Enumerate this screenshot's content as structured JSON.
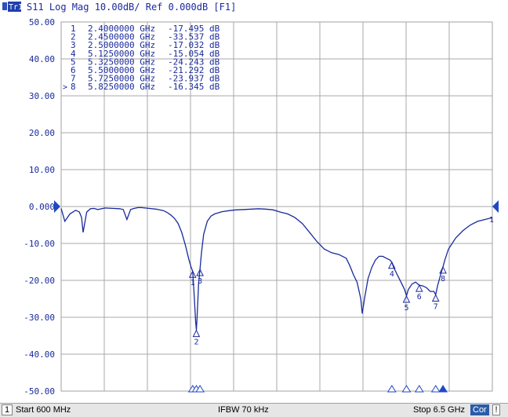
{
  "header": {
    "trace_badge": "Tr1",
    "trace_label": "S11 Log Mag 10.00dB/ Ref 0.000dB [F1]"
  },
  "status_bar": {
    "channel": "1",
    "start": "Start 600 MHz",
    "ifbw": "IFBW 70 kHz",
    "stop": "Stop 6.5 GHz",
    "cor": "Cor",
    "excl": "!"
  },
  "colors": {
    "trace": "#1a2a9c",
    "marker_text": "#1a2a9c",
    "grid": "#a8a8a8",
    "ref_marker": "#1f47c8",
    "header_bg": "#ffffff"
  },
  "markers": [
    {
      "num": "1",
      "freq": "2.4000000 GHz",
      "value": "-17.495 dB",
      "active": false
    },
    {
      "num": "2",
      "freq": "2.4500000 GHz",
      "value": "-33.537 dB",
      "active": false
    },
    {
      "num": "3",
      "freq": "2.5000000 GHz",
      "value": "-17.032 dB",
      "active": false
    },
    {
      "num": "4",
      "freq": "5.1250000 GHz",
      "value": "-15.054 dB",
      "active": false
    },
    {
      "num": "5",
      "freq": "5.3250000 GHz",
      "value": "-24.243 dB",
      "active": false
    },
    {
      "num": "6",
      "freq": "5.5000000 GHz",
      "value": "-21.292 dB",
      "active": false
    },
    {
      "num": "7",
      "freq": "5.7250000 GHz",
      "value": "-23.937 dB",
      "active": false
    },
    {
      "num": "8",
      "freq": "5.8250000 GHz",
      "value": "-16.345 dB",
      "active": true
    }
  ],
  "chart_data": {
    "type": "line",
    "xlim": [
      0.6,
      6.5
    ],
    "ylim": [
      -50,
      50
    ],
    "yticks": [
      "50.00",
      "40.00",
      "30.00",
      "20.00",
      "10.00",
      "0.000",
      "-10.00",
      "-20.00",
      "-30.00",
      "-40.00",
      "-50.00"
    ],
    "ytick_values": [
      50,
      40,
      30,
      20,
      10,
      0,
      -10,
      -20,
      -30,
      -40,
      -50
    ],
    "grid": true,
    "reference_level": 0,
    "series": [
      {
        "x": [
          0.6,
          0.65,
          0.72,
          0.8,
          0.85,
          0.88,
          0.9,
          0.95,
          1.0,
          1.05,
          1.1,
          1.2,
          1.3,
          1.4,
          1.45,
          1.5,
          1.55,
          1.6,
          1.65,
          1.7,
          1.75,
          1.8,
          1.9,
          2.0,
          2.05,
          2.1,
          2.15,
          2.2,
          2.25,
          2.3,
          2.35,
          2.38,
          2.4,
          2.42,
          2.44,
          2.45,
          2.46,
          2.48,
          2.5,
          2.52,
          2.55,
          2.6,
          2.65,
          2.7,
          2.8,
          2.9,
          3.0,
          3.1,
          3.2,
          3.3,
          3.4,
          3.5,
          3.6,
          3.7,
          3.8,
          3.9,
          4.0,
          4.1,
          4.2,
          4.3,
          4.4,
          4.5,
          4.55,
          4.6,
          4.65,
          4.7,
          4.72,
          4.75,
          4.8,
          4.85,
          4.9,
          4.95,
          5.0,
          5.05,
          5.1,
          5.125,
          5.15,
          5.2,
          5.25,
          5.3,
          5.325,
          5.35,
          5.4,
          5.45,
          5.5,
          5.55,
          5.6,
          5.65,
          5.7,
          5.725,
          5.75,
          5.8,
          5.825,
          5.85,
          5.9,
          6.0,
          6.1,
          6.2,
          6.3,
          6.4,
          6.5
        ],
        "y": [
          -0.5,
          -4.0,
          -2.0,
          -1.0,
          -1.5,
          -3.0,
          -7.0,
          -1.5,
          -0.6,
          -0.5,
          -0.8,
          -0.4,
          -0.5,
          -0.6,
          -0.8,
          -3.5,
          -0.8,
          -0.5,
          -0.3,
          -0.3,
          -0.4,
          -0.5,
          -0.7,
          -1.1,
          -1.6,
          -2.3,
          -3.2,
          -4.6,
          -7.0,
          -10.5,
          -14.5,
          -16.5,
          -17.5,
          -24.0,
          -31.0,
          -33.5,
          -30.0,
          -21.0,
          -17.0,
          -12.5,
          -7.5,
          -4.0,
          -2.6,
          -2.0,
          -1.4,
          -1.1,
          -0.9,
          -0.8,
          -0.7,
          -0.6,
          -0.7,
          -0.9,
          -1.5,
          -2.0,
          -3.0,
          -4.6,
          -7.0,
          -9.5,
          -11.5,
          -12.5,
          -13.0,
          -14.0,
          -16.0,
          -18.5,
          -20.5,
          -25.0,
          -29.0,
          -25.0,
          -19.5,
          -16.5,
          -14.5,
          -13.5,
          -13.5,
          -14.0,
          -14.5,
          -15.1,
          -16.5,
          -18.5,
          -20.5,
          -22.5,
          -24.2,
          -22.5,
          -21.0,
          -20.5,
          -21.3,
          -21.5,
          -22.0,
          -23.0,
          -23.0,
          -23.9,
          -21.5,
          -18.0,
          -16.3,
          -14.5,
          -11.5,
          -8.5,
          -6.5,
          -5.0,
          -4.0,
          -3.5,
          -3.0
        ]
      }
    ],
    "axis_markers": [
      {
        "label": "1",
        "x": 2.4,
        "y": -17.495
      },
      {
        "label": "2",
        "x": 2.45,
        "y": -33.537
      },
      {
        "label": "3",
        "x": 2.5,
        "y": -17.032
      },
      {
        "label": "4",
        "x": 5.125,
        "y": -15.054
      },
      {
        "label": "5",
        "x": 5.325,
        "y": -24.243
      },
      {
        "label": "6",
        "x": 5.5,
        "y": -21.292
      },
      {
        "label": "7",
        "x": 5.725,
        "y": -23.937
      },
      {
        "label": "8",
        "x": 5.825,
        "y": -16.345
      }
    ],
    "right_marker_label": "1"
  }
}
